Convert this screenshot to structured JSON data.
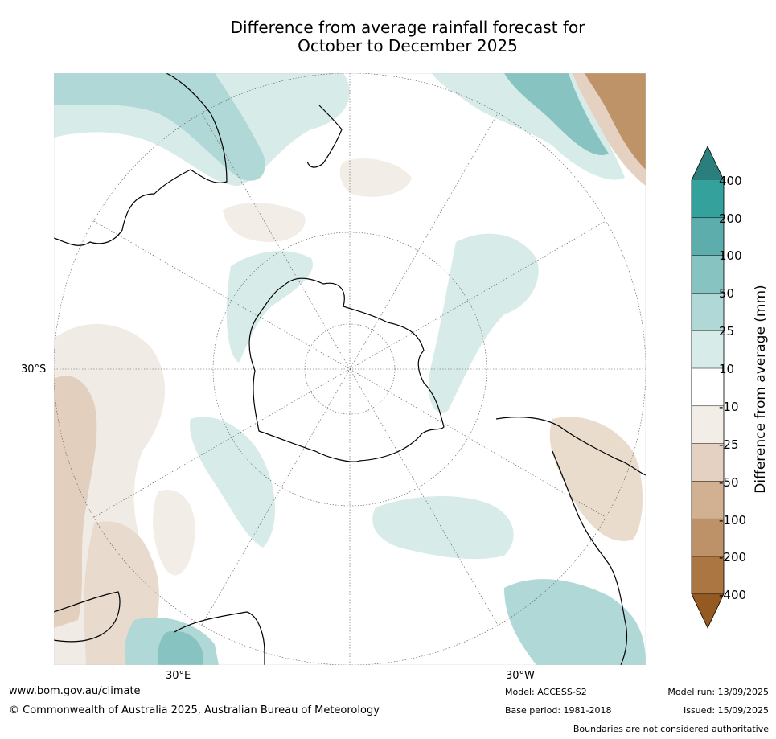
{
  "title": {
    "line1": "Difference from average rainfall forecast for",
    "line2": "October to December 2025"
  },
  "map": {
    "projection": "south-polar-stereographic",
    "lat_label": "30°S",
    "lon_label_left": "30°E",
    "lon_label_right": "30°W"
  },
  "colorbar": {
    "title": "Difference from average (mm)",
    "labels": [
      "400",
      "200",
      "100",
      "50",
      "25",
      "10",
      "-10",
      "-25",
      "-50",
      "-100",
      "-200",
      "-400"
    ],
    "colors": [
      "#2a7f7c",
      "#35a19c",
      "#5cadac",
      "#86c3c1",
      "#b0d8d6",
      "#d7ebe9",
      "#ffffff",
      "#f3ede7",
      "#e4d1c1",
      "#d1b192",
      "#be9268",
      "#ab7641",
      "#945a22"
    ]
  },
  "footer": {
    "url": "www.bom.gov.au/climate",
    "copyright": "© Commonwealth of Australia 2025, Australian Bureau of Meteorology",
    "model": "Model: ACCESS-S2",
    "base_period": "Base period: 1981-2018",
    "model_run": "Model run: 13/09/2025",
    "issued": "Issued: 15/09/2025",
    "disclaimer": "Boundaries are not considered authoritative"
  }
}
